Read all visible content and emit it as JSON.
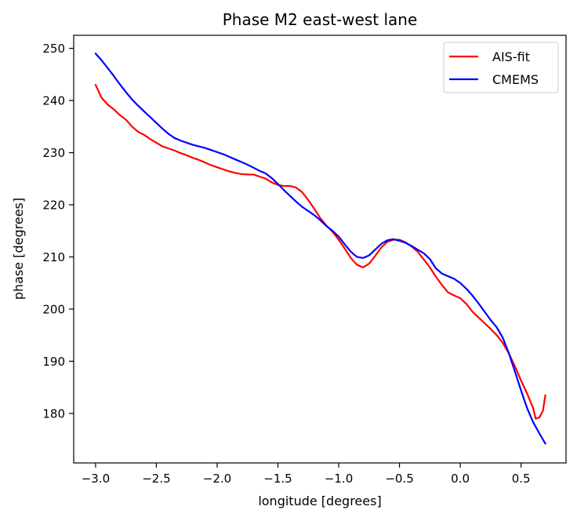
{
  "chart_data": {
    "type": "line",
    "title": "Phase M2 east-west lane",
    "xlabel": "longitude [degrees]",
    "ylabel": "phase [degrees]",
    "xlim": [
      -3.18,
      0.87
    ],
    "ylim": [
      170.5,
      252.5
    ],
    "xticks": [
      -3.0,
      -2.5,
      -2.0,
      -1.5,
      -1.0,
      -0.5,
      0.0,
      0.5
    ],
    "xtick_labels": [
      "−3.0",
      "−2.5",
      "−2.0",
      "−1.5",
      "−1.0",
      "−0.5",
      "0.0",
      "0.5"
    ],
    "yticks": [
      180,
      190,
      200,
      210,
      220,
      230,
      240,
      250
    ],
    "ytick_labels": [
      "180",
      "190",
      "200",
      "210",
      "220",
      "230",
      "240",
      "250"
    ],
    "grid": false,
    "legend_position": "top-right",
    "series": [
      {
        "name": "AIS-fit",
        "color": "#ff0000",
        "x": [
          -3.0,
          -2.95,
          -2.9,
          -2.85,
          -2.8,
          -2.75,
          -2.7,
          -2.65,
          -2.6,
          -2.55,
          -2.5,
          -2.45,
          -2.4,
          -2.35,
          -2.3,
          -2.25,
          -2.2,
          -2.15,
          -2.1,
          -2.05,
          -2.0,
          -1.95,
          -1.9,
          -1.85,
          -1.8,
          -1.75,
          -1.7,
          -1.65,
          -1.6,
          -1.55,
          -1.5,
          -1.45,
          -1.4,
          -1.35,
          -1.3,
          -1.25,
          -1.2,
          -1.15,
          -1.1,
          -1.05,
          -1.0,
          -0.95,
          -0.9,
          -0.85,
          -0.8,
          -0.75,
          -0.7,
          -0.65,
          -0.6,
          -0.55,
          -0.5,
          -0.45,
          -0.4,
          -0.35,
          -0.3,
          -0.25,
          -0.2,
          -0.15,
          -0.1,
          -0.05,
          0.0,
          0.05,
          0.1,
          0.15,
          0.2,
          0.25,
          0.3,
          0.35,
          0.4,
          0.45,
          0.5,
          0.55,
          0.6,
          0.62,
          0.65,
          0.68,
          0.7
        ],
        "y": [
          243.0,
          240.5,
          239.2,
          238.3,
          237.2,
          236.3,
          235.0,
          234.0,
          233.4,
          232.6,
          231.9,
          231.2,
          230.8,
          230.4,
          229.9,
          229.5,
          229.0,
          228.6,
          228.1,
          227.6,
          227.2,
          226.8,
          226.4,
          226.1,
          225.9,
          225.8,
          225.8,
          225.4,
          225.0,
          224.3,
          223.8,
          223.6,
          223.6,
          223.3,
          222.4,
          220.9,
          219.2,
          217.4,
          216.0,
          214.8,
          213.3,
          211.6,
          209.8,
          208.5,
          208.0,
          208.7,
          210.2,
          211.8,
          212.9,
          213.3,
          213.3,
          212.8,
          212.0,
          211.0,
          209.5,
          208.0,
          206.2,
          204.6,
          203.2,
          202.6,
          202.1,
          201.0,
          199.5,
          198.4,
          197.3,
          196.2,
          195.0,
          193.5,
          191.5,
          189.0,
          186.3,
          183.8,
          181.0,
          179.0,
          179.2,
          180.5,
          183.5
        ]
      },
      {
        "name": "CMEMS",
        "color": "#0000ff",
        "x": [
          -3.0,
          -2.95,
          -2.9,
          -2.85,
          -2.8,
          -2.75,
          -2.7,
          -2.65,
          -2.6,
          -2.55,
          -2.5,
          -2.45,
          -2.4,
          -2.35,
          -2.3,
          -2.25,
          -2.2,
          -2.15,
          -2.1,
          -2.05,
          -2.0,
          -1.95,
          -1.9,
          -1.85,
          -1.8,
          -1.75,
          -1.7,
          -1.65,
          -1.6,
          -1.55,
          -1.5,
          -1.45,
          -1.4,
          -1.35,
          -1.3,
          -1.25,
          -1.2,
          -1.15,
          -1.1,
          -1.05,
          -1.0,
          -0.95,
          -0.9,
          -0.85,
          -0.8,
          -0.75,
          -0.7,
          -0.65,
          -0.6,
          -0.55,
          -0.5,
          -0.45,
          -0.4,
          -0.35,
          -0.3,
          -0.25,
          -0.2,
          -0.15,
          -0.1,
          -0.05,
          0.0,
          0.05,
          0.1,
          0.15,
          0.2,
          0.25,
          0.3,
          0.35,
          0.4,
          0.45,
          0.5,
          0.55,
          0.6,
          0.65,
          0.7
        ],
        "y": [
          249.0,
          247.7,
          246.2,
          244.7,
          243.1,
          241.6,
          240.2,
          239.0,
          237.9,
          236.8,
          235.7,
          234.6,
          233.6,
          232.8,
          232.3,
          231.9,
          231.5,
          231.2,
          230.9,
          230.5,
          230.1,
          229.7,
          229.2,
          228.7,
          228.2,
          227.7,
          227.1,
          226.5,
          226.0,
          225.1,
          224.0,
          222.8,
          221.7,
          220.6,
          219.6,
          218.8,
          218.0,
          217.0,
          215.9,
          215.0,
          213.9,
          212.4,
          211.0,
          210.0,
          209.8,
          210.3,
          211.4,
          212.5,
          213.2,
          213.4,
          213.1,
          212.7,
          212.1,
          211.4,
          210.7,
          209.6,
          207.8,
          206.8,
          206.3,
          205.8,
          205.0,
          203.9,
          202.6,
          201.1,
          199.5,
          197.9,
          196.5,
          194.5,
          191.5,
          188.0,
          184.4,
          181.0,
          178.3,
          176.2,
          174.2
        ]
      }
    ]
  }
}
